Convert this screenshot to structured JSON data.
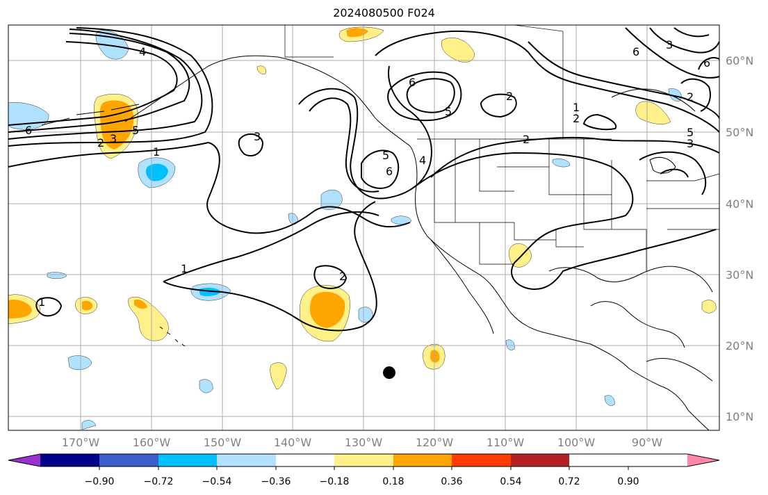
{
  "title": "2024080500 F024",
  "lat_labels": [
    "60°N",
    "50°N",
    "40°N",
    "30°N",
    "20°N",
    "10°N"
  ],
  "lon_labels": [
    "170°W",
    "160°W",
    "150°W",
    "140°W",
    "130°W",
    "120°W",
    "110°W",
    "100°W",
    "90°W"
  ],
  "colorbar": {
    "tick_labels": [
      "−0.90",
      "−0.72",
      "−0.54",
      "−0.36",
      "−0.18",
      "0.18",
      "0.36",
      "0.54",
      "0.72",
      "0.90"
    ],
    "colors": [
      "#9932cc",
      "#00008b",
      "#3a5fcd",
      "#00bfff",
      "#b0e2ff",
      "#ffffff",
      "#fff08a",
      "#ffa500",
      "#ff3d00",
      "#b22222",
      "#ff88aa"
    ]
  },
  "contour_labels": [
    "4",
    "6",
    "3",
    "5",
    "2",
    "1",
    "3",
    "1",
    "2",
    "6",
    "5",
    "2",
    "5",
    "6",
    "4",
    "2",
    "1",
    "2",
    "2",
    "5",
    "3",
    "6",
    "3",
    "6",
    "1"
  ],
  "map_extent": {
    "lon_min": -180,
    "lon_max": -80,
    "lat_min": 8,
    "lat_max": 65
  }
}
